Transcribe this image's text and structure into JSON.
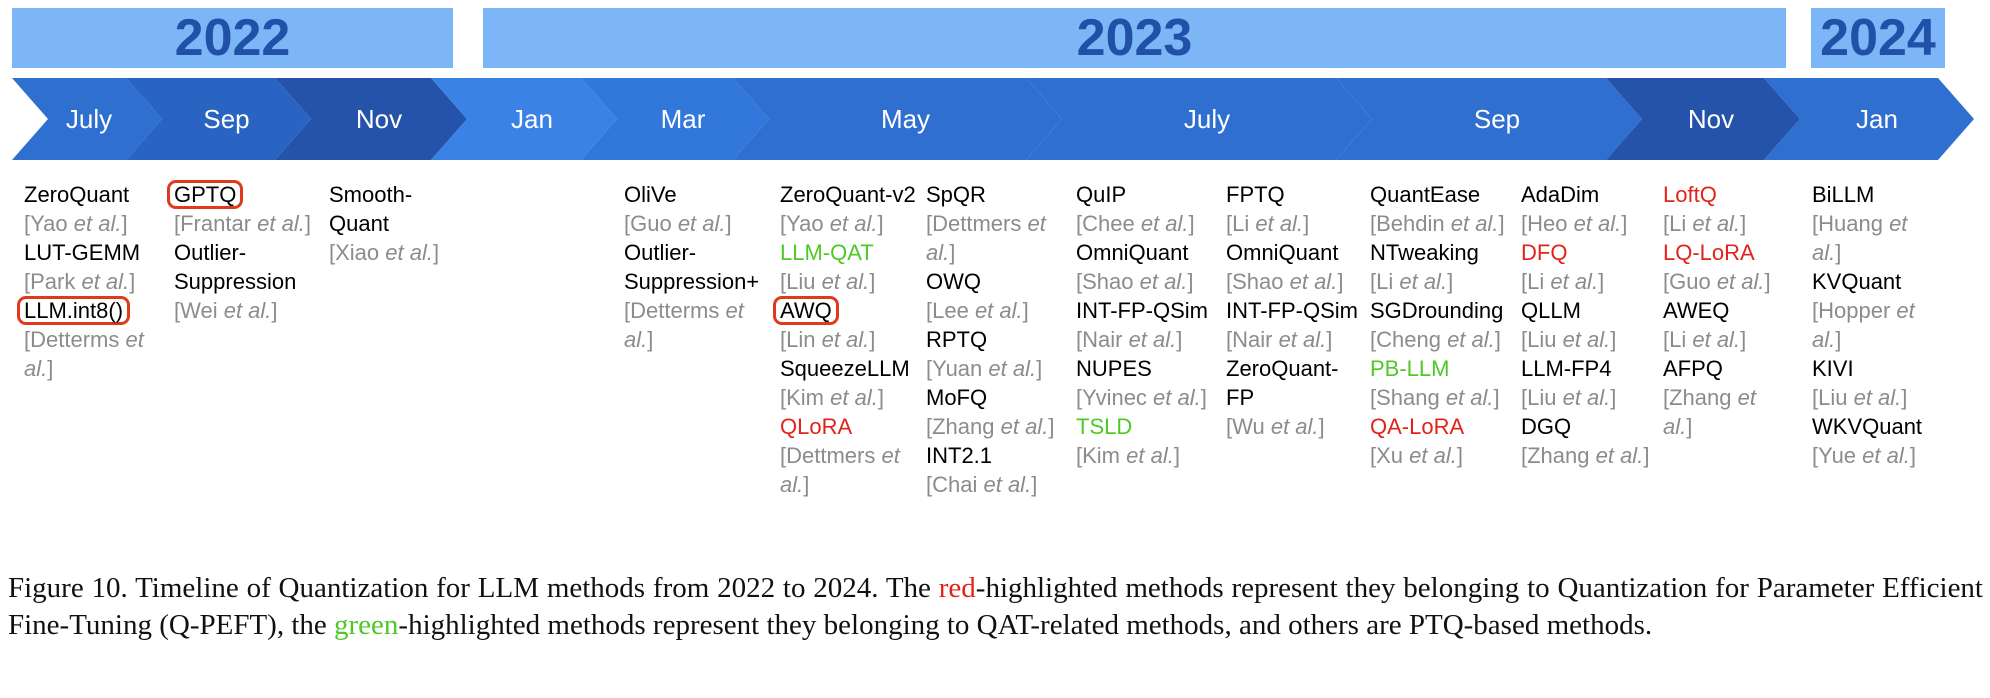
{
  "years": [
    {
      "label": "2022"
    },
    {
      "label": "2023"
    },
    {
      "label": "2024"
    }
  ],
  "months": [
    {
      "label": "July",
      "color": "#2f6fcf"
    },
    {
      "label": "Sep",
      "color": "#2a64c3"
    },
    {
      "label": "Nov",
      "color": "#2453a9"
    },
    {
      "label": "Jan",
      "color": "#3b82e6"
    },
    {
      "label": "Mar",
      "color": "#3177dc"
    },
    {
      "label": "May",
      "color": "#2f6fcf"
    },
    {
      "label": "July",
      "color": "#2f6fcf"
    },
    {
      "label": "Sep",
      "color": "#2f6fcf"
    },
    {
      "label": "Nov",
      "color": "#2453a9"
    },
    {
      "label": "Jan",
      "color": "#2f6fcf"
    }
  ],
  "columns": [
    [
      {
        "name": "ZeroQuant",
        "cite": "[Yao et al.]"
      },
      {
        "name": "LUT-GEMM",
        "cite": "[Park et al.]"
      },
      {
        "name": "LLM.int8()",
        "boxed": true,
        "cite": "[Detterms et al.]"
      }
    ],
    [
      {
        "name": "GPTQ",
        "boxed": true,
        "cite": "[Frantar et al.]"
      },
      {
        "name": "Outlier-Suppression",
        "cite": "[Wei et al.]"
      }
    ],
    [
      {
        "name": "Smooth-Quant",
        "cite": "[Xiao et al.]"
      }
    ],
    [
      {
        "name": "OliVe",
        "cite": "[Guo et al.]"
      },
      {
        "name": "Outlier-Suppression+",
        "cite": "[Detterms et al.]"
      }
    ],
    [
      {
        "name": "ZeroQuant-v2",
        "cite": "[Yao et al.]"
      },
      {
        "name": "LLM-QAT",
        "color": "green",
        "cite": "[Liu et al.]"
      },
      {
        "name": "AWQ",
        "boxed": true,
        "cite": "[Lin et al.]"
      },
      {
        "name": "SqueezeLLM",
        "cite": "[Kim et al.]"
      },
      {
        "name": "QLoRA",
        "color": "red",
        "cite": "[Dettmers et al.]"
      }
    ],
    [
      {
        "name": "SpQR",
        "cite": "[Dettmers et al.]"
      },
      {
        "name": "OWQ",
        "cite": "[Lee et al.]"
      },
      {
        "name": "RPTQ",
        "cite": "[Yuan et al.]"
      },
      {
        "name": "MoFQ",
        "cite": "[Zhang et al.]"
      },
      {
        "name": "INT2.1",
        "cite": "[Chai et al.]"
      }
    ],
    [
      {
        "name": "QuIP",
        "cite": "[Chee et al.]"
      },
      {
        "name": "OmniQuant",
        "cite": "[Shao et al.]"
      },
      {
        "name": "INT-FP-QSim",
        "cite": "[Nair et al.]"
      },
      {
        "name": "NUPES",
        "cite": "[Yvinec et al.]"
      },
      {
        "name": "TSLD",
        "color": "green",
        "cite": "[Kim et al.]"
      }
    ],
    [
      {
        "name": "FPTQ",
        "cite": "[Li et al.]"
      },
      {
        "name": "OmniQuant",
        "cite": "[Shao et al.]"
      },
      {
        "name": "INT-FP-QSim",
        "cite": "[Nair et al.]"
      },
      {
        "name": "ZeroQuant-FP",
        "cite": "[Wu et al.]"
      }
    ],
    [
      {
        "name": "QuantEase",
        "cite": "[Behdin et al.]"
      },
      {
        "name": "NTweaking",
        "cite": "[Li et al.]"
      },
      {
        "name": "SGDrounding",
        "cite": "[Cheng et al.]"
      },
      {
        "name": "PB-LLM",
        "color": "green",
        "cite": "[Shang et al.]"
      },
      {
        "name": "QA-LoRA",
        "color": "red",
        "cite": "[Xu et al.]"
      }
    ],
    [
      {
        "name": "AdaDim",
        "cite": "[Heo et al.]"
      },
      {
        "name": "DFQ",
        "color": "red",
        "cite": "[Li et al.]"
      },
      {
        "name": "QLLM",
        "cite": "[Liu et al.]"
      },
      {
        "name": "LLM-FP4",
        "cite": "[Liu et al.]"
      },
      {
        "name": "DGQ",
        "cite": "[Zhang et al.]"
      }
    ],
    [
      {
        "name": "LoftQ",
        "color": "red",
        "cite": "[Li et al.]"
      },
      {
        "name": "LQ-LoRA",
        "color": "red",
        "cite": "[Guo et al.]"
      },
      {
        "name": "AWEQ",
        "cite": "[Li et al.]"
      },
      {
        "name": "AFPQ",
        "cite": "[Zhang et al.]"
      }
    ],
    [
      {
        "name": "BiLLM",
        "cite": "[Huang et al.]"
      },
      {
        "name": "KVQuant",
        "cite": "[Hopper et al.]"
      },
      {
        "name": "KIVI",
        "cite": "[Liu et al.]"
      },
      {
        "name": "WKVQuant",
        "cite": "[Yue et al.]"
      }
    ]
  ],
  "caption": {
    "part1": "Figure 10. Timeline of Quantization for LLM methods from 2022 to 2024. The ",
    "red_word": "red",
    "part2": "-highlighted methods represent they belonging to Quantization for Parameter Efficient Fine-Tuning (Q-PEFT), the ",
    "green_word": "green",
    "part3": "-highlighted methods represent they belonging to QAT-related methods, and others are PTQ-based methods."
  }
}
